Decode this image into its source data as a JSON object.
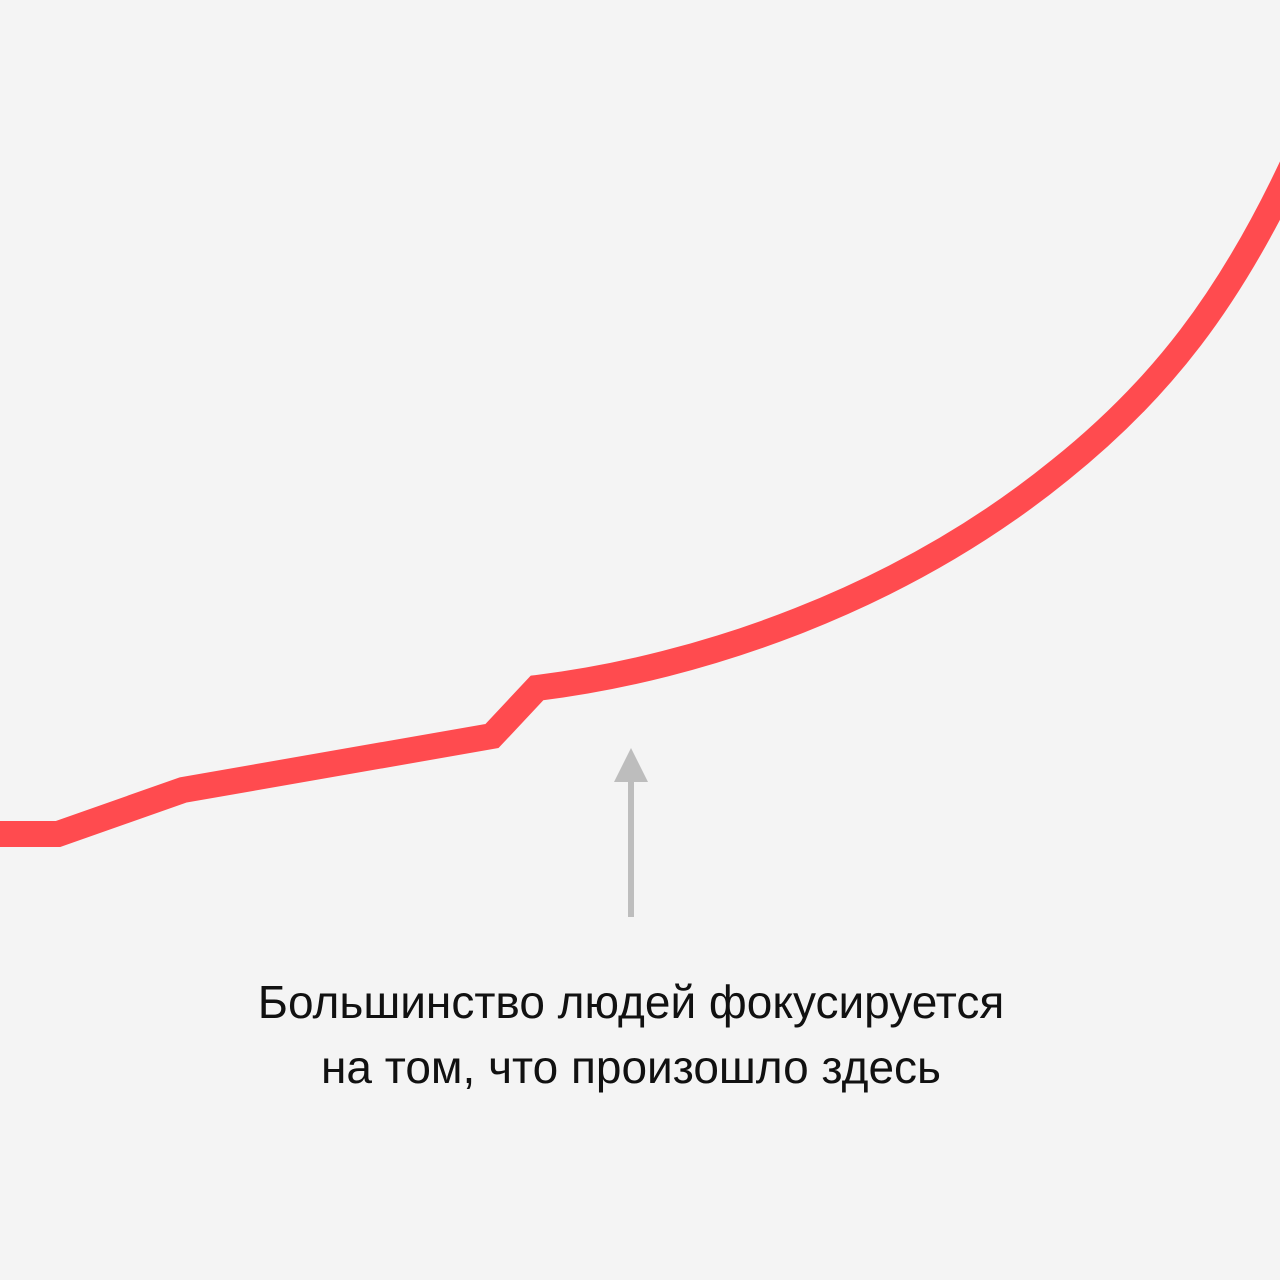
{
  "caption": {
    "lines": [
      "Большинство людей фокусируется",
      "на том, что произошло здесь"
    ]
  }
}
